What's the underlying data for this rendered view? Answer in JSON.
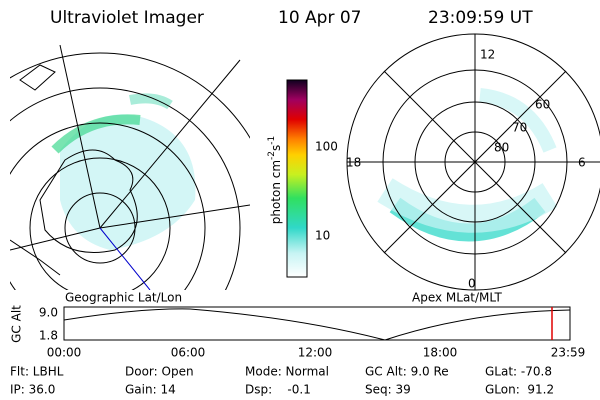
{
  "header": {
    "title": "Ultraviolet Imager",
    "date": "10 Apr 07",
    "time": "23:09:59 UT"
  },
  "left_panel": {
    "label": "Geographic Lat/Lon"
  },
  "right_panel": {
    "label": "Apex MLat/MLT",
    "mlt_labels": [
      "12",
      "18",
      "6",
      "0"
    ],
    "lat_labels": [
      "60",
      "70",
      "80"
    ]
  },
  "colorbar": {
    "label": {
      "base": "photon cm",
      "exp1": "-2",
      "unit2": "s",
      "exp2": "-1"
    },
    "ticks": [
      "100",
      "10"
    ]
  },
  "altitude_plot": {
    "axis_label": "GC Alt",
    "y_labels": [
      "9.0",
      "1.8"
    ],
    "time_labels": [
      "00:00",
      "06:00",
      "12:00",
      "18:00",
      "23:59"
    ]
  },
  "footer": [
    [
      "Flt: LBHL",
      "IP: 36.0"
    ],
    [
      "Door: Open",
      "Gain: 14"
    ],
    [
      "Mode: Normal",
      "Dsp:    -0.1"
    ],
    [
      "GC Alt: 9.0 Re",
      "Seq: 39"
    ],
    [
      "GLat: -70.8",
      "GLon:  91.2"
    ]
  ]
}
